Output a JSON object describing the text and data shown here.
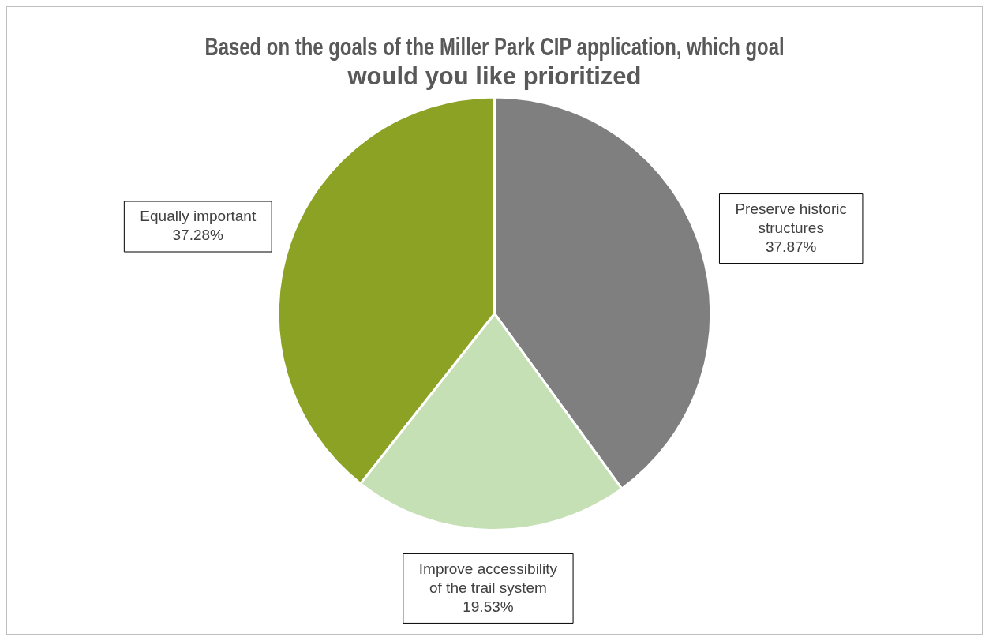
{
  "chart_data": {
    "type": "pie",
    "title": "Based on the goals of the Miller Park CIP application, which goal would you like prioritized",
    "categories": [
      "Preserve historic structures",
      "Improve accessibility of the trail system",
      "Equally important"
    ],
    "values": [
      37.87,
      19.53,
      37.28
    ],
    "colors": [
      "#7f7f7f",
      "#c5e0b4",
      "#8ba225"
    ],
    "value_labels": [
      "37.87%",
      "19.53%",
      "37.28%"
    ],
    "legend": false
  }
}
